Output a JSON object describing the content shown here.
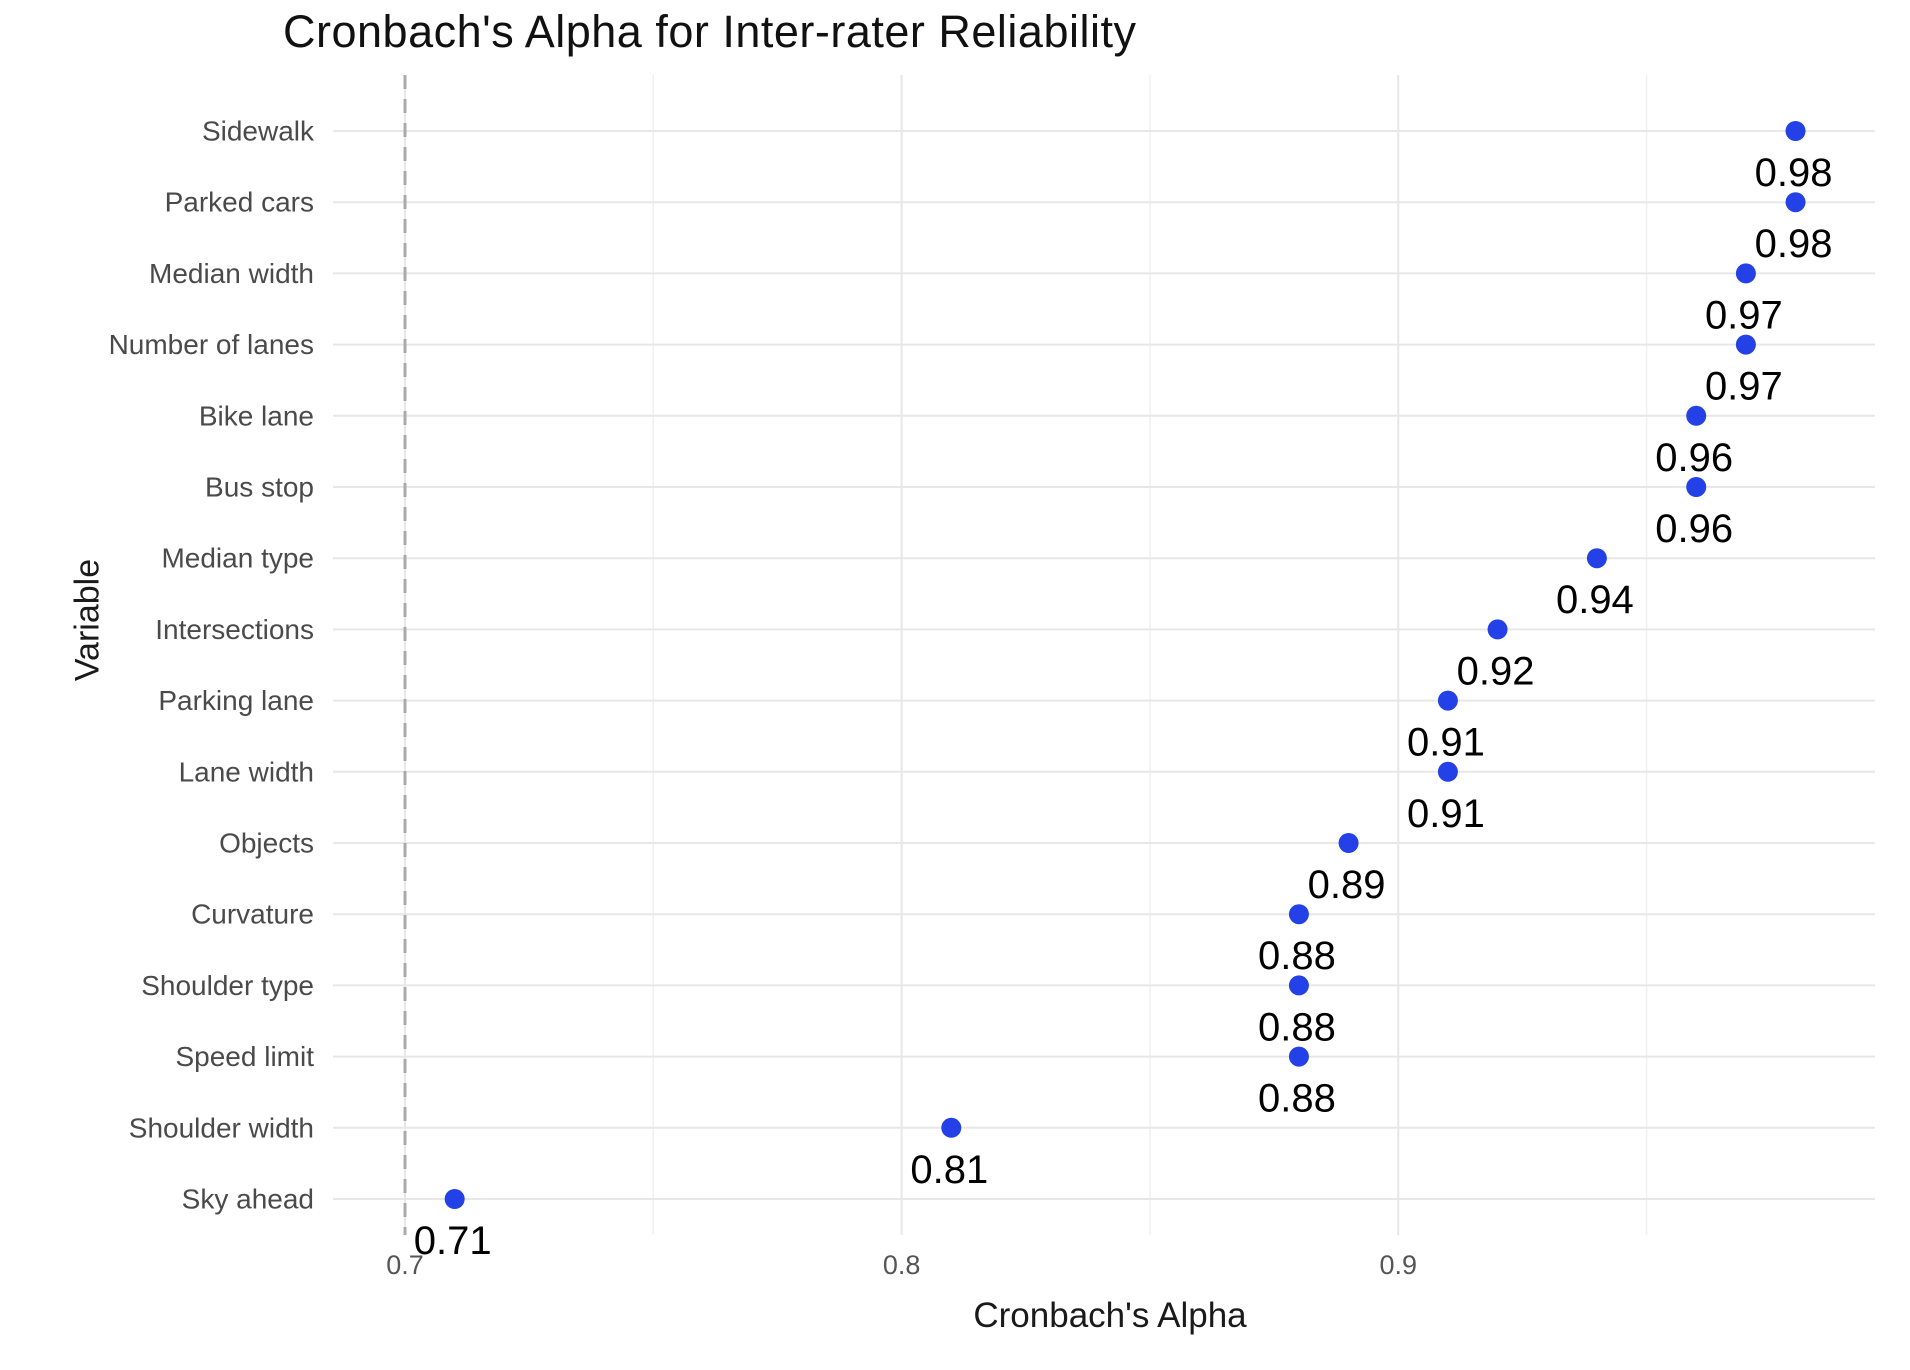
{
  "page": {
    "background": "#ffffff"
  },
  "chart_data": {
    "type": "scatter",
    "title": "Cronbach's Alpha for Inter-rater Reliability",
    "xlabel": "Cronbach's Alpha",
    "ylabel": "Variable",
    "categories": [
      "Sidewalk",
      "Parked cars",
      "Median width",
      "Number of lanes",
      "Bike lane",
      "Bus stop",
      "Median type",
      "Intersections",
      "Parking lane",
      "Lane width",
      "Objects",
      "Curvature",
      "Shoulder type",
      "Speed limit",
      "Shoulder width",
      "Sky ahead"
    ],
    "values": [
      0.98,
      0.98,
      0.97,
      0.97,
      0.96,
      0.96,
      0.94,
      0.92,
      0.91,
      0.91,
      0.89,
      0.88,
      0.88,
      0.88,
      0.81,
      0.71
    ],
    "value_labels": [
      "0.98",
      "0.98",
      "0.97",
      "0.97",
      "0.96",
      "0.96",
      "0.94",
      "0.92",
      "0.91",
      "0.91",
      "0.89",
      "0.88",
      "0.88",
      "0.88",
      "0.81",
      "0.71"
    ],
    "x_ticks": [
      {
        "value": 0.7,
        "label": "0.7"
      },
      {
        "value": 0.8,
        "label": "0.8"
      },
      {
        "value": 0.9,
        "label": "0.9"
      }
    ],
    "x_minor_ticks": [
      0.75,
      0.85,
      0.95
    ],
    "xlim": [
      0.6855,
      0.996
    ],
    "reference_line": {
      "x": 0.7,
      "style": "dashed",
      "color": "#aaaaaa"
    },
    "grid": true,
    "legend_position": "none",
    "colors": {
      "point": "#2341e6",
      "value_label": "#000000",
      "category_text": "#4a4a4a",
      "tick_text": "#555555",
      "grid_major": "#e7e7e7",
      "grid_minor": "#f0f0f0"
    }
  }
}
